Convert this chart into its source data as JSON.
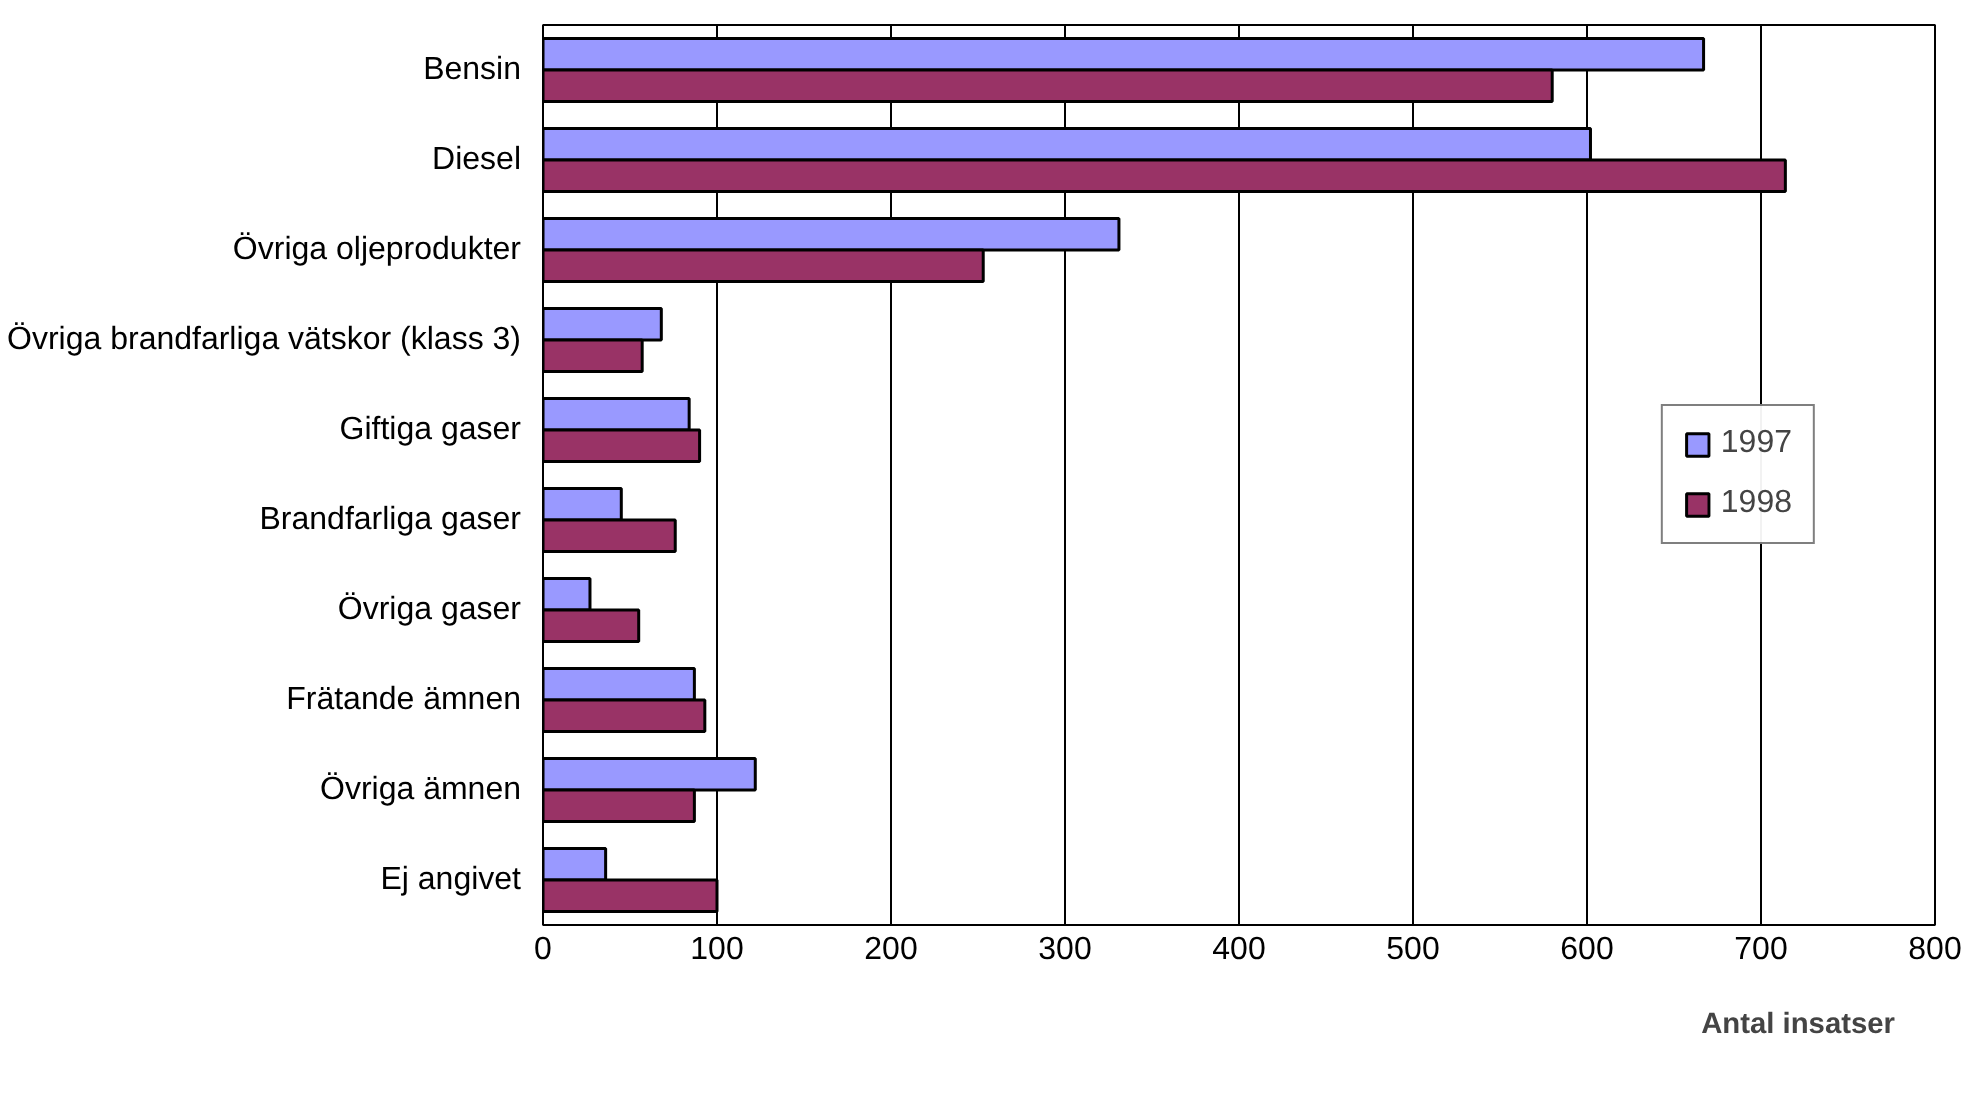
{
  "chart_data": {
    "type": "bar",
    "orientation": "horizontal",
    "xlabel": "Antal insatser",
    "categories": [
      "Bensin",
      "Diesel",
      "Övriga oljeprodukter",
      "Övriga brandfarliga vätskor (klass 3)",
      "Giftiga gaser",
      "Brandfarliga gaser",
      "Övriga gaser",
      "Frätande ämnen",
      "Övriga ämnen",
      "Ej angivet"
    ],
    "series": [
      {
        "name": "1997",
        "color": "#9999ff",
        "values": [
          667,
          602,
          331,
          68,
          84,
          45,
          27,
          87,
          122,
          36
        ]
      },
      {
        "name": "1998",
        "color": "#993366",
        "values": [
          580,
          714,
          253,
          57,
          90,
          76,
          55,
          93,
          87,
          100
        ]
      }
    ],
    "xlim": [
      0,
      800
    ],
    "xticks": [
      0,
      100,
      200,
      300,
      400,
      500,
      600,
      700,
      800
    ],
    "grid": "x",
    "legend": "right"
  }
}
